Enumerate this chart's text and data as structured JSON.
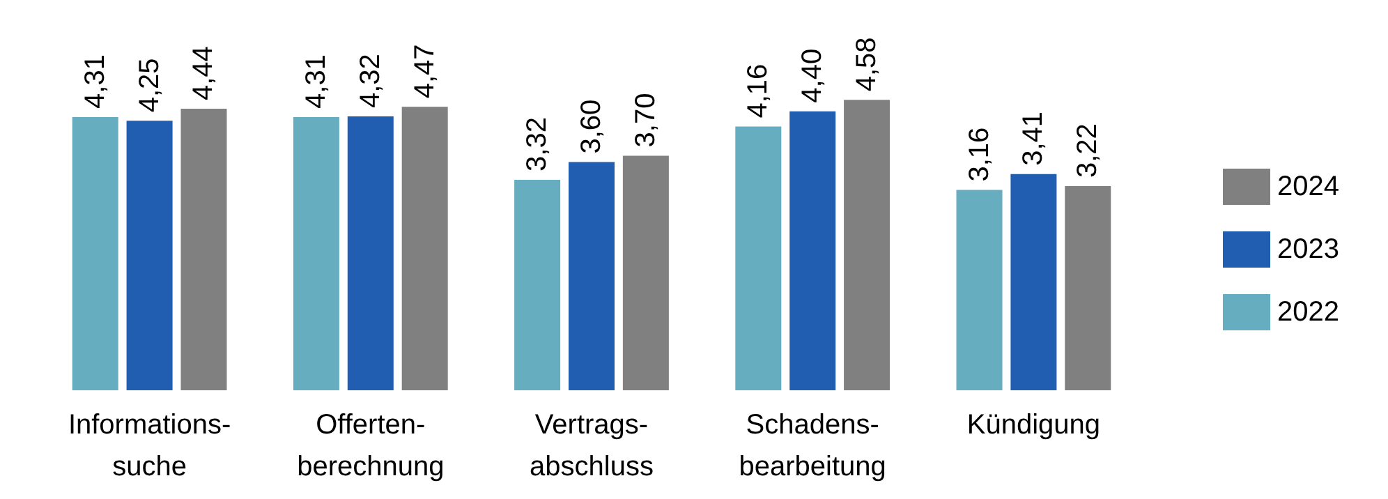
{
  "chart_data": {
    "type": "bar",
    "categories": [
      "Informations-\nsuche",
      "Offerten-\nberechnung",
      "Vertrags-\nabschluss",
      "Schadens-\nbearbeitung",
      "Kündigung"
    ],
    "series": [
      {
        "name": "2022",
        "color": "#66adc0",
        "values": [
          4.31,
          4.31,
          3.32,
          4.16,
          3.16
        ],
        "value_labels": [
          "4,31",
          "4,31",
          "3,32",
          "4,16",
          "3,16"
        ]
      },
      {
        "name": "2023",
        "color": "#215db0",
        "values": [
          4.25,
          4.32,
          3.6,
          4.4,
          3.41
        ],
        "value_labels": [
          "4,25",
          "4,32",
          "3,60",
          "4,40",
          "3,41"
        ]
      },
      {
        "name": "2024",
        "color": "#808080",
        "values": [
          4.44,
          4.47,
          3.7,
          4.58,
          3.22
        ],
        "value_labels": [
          "4,44",
          "4,47",
          "3,70",
          "4,58",
          "3,22"
        ]
      }
    ],
    "legend": "right"
  }
}
